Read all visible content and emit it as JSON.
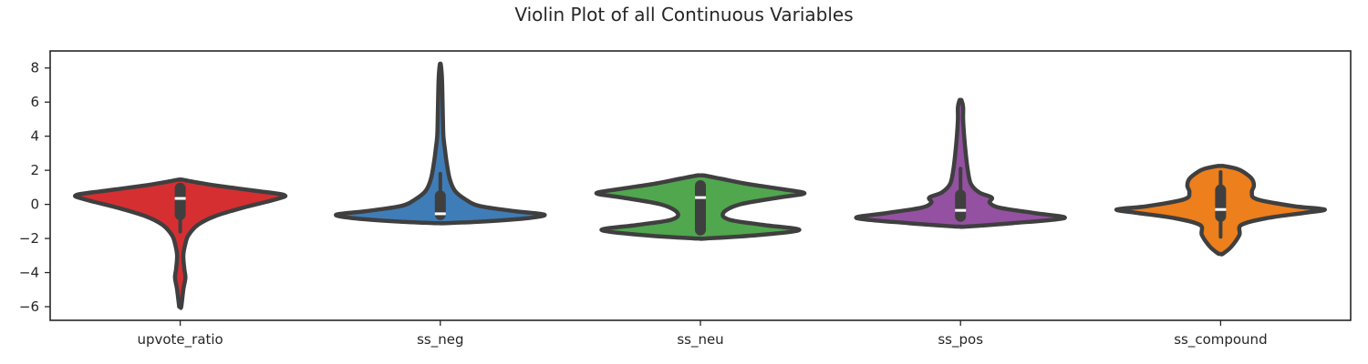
{
  "chart_data": {
    "type": "violin",
    "title": "Violin Plot of all Continuous Variables",
    "xlabel": "",
    "ylabel": "",
    "ylim": [
      -6.8,
      9.0
    ],
    "yticks": [
      -6,
      -4,
      -2,
      0,
      2,
      4,
      6,
      8
    ],
    "categories": [
      "upvote_ratio",
      "ss_neg",
      "ss_neu",
      "ss_pos",
      "ss_compound"
    ],
    "colors": [
      "#d62f32",
      "#3f7db8",
      "#50a74e",
      "#9451a1",
      "#ed7f1c"
    ],
    "series": [
      {
        "min": -6.0,
        "q1": -0.6,
        "median": 0.35,
        "q3": 0.95,
        "max": 1.45,
        "whisker_low": -1.6,
        "whisker_high": 1.1,
        "profile": [
          [
            -6.0,
            0.01
          ],
          [
            -5.0,
            0.03
          ],
          [
            -4.3,
            0.05
          ],
          [
            -3.8,
            0.04
          ],
          [
            -3.0,
            0.03
          ],
          [
            -2.3,
            0.05
          ],
          [
            -1.8,
            0.08
          ],
          [
            -1.2,
            0.17
          ],
          [
            -0.7,
            0.33
          ],
          [
            -0.2,
            0.6
          ],
          [
            0.3,
            0.92
          ],
          [
            0.55,
            1.0
          ],
          [
            0.8,
            0.72
          ],
          [
            1.1,
            0.35
          ],
          [
            1.3,
            0.15
          ],
          [
            1.45,
            0.02
          ]
        ]
      },
      {
        "min": -1.1,
        "q1": -0.6,
        "median": -0.55,
        "q3": 0.5,
        "max": 8.2,
        "whisker_low": -0.7,
        "whisker_high": 1.8,
        "profile": [
          [
            -1.1,
            0.05
          ],
          [
            -1.0,
            0.42
          ],
          [
            -0.8,
            0.85
          ],
          [
            -0.6,
            1.0
          ],
          [
            -0.4,
            0.72
          ],
          [
            -0.1,
            0.38
          ],
          [
            0.3,
            0.24
          ],
          [
            0.8,
            0.14
          ],
          [
            1.5,
            0.09
          ],
          [
            2.5,
            0.06
          ],
          [
            3.2,
            0.045
          ],
          [
            4.0,
            0.03
          ],
          [
            5.0,
            0.025
          ],
          [
            6.5,
            0.02
          ],
          [
            7.5,
            0.015
          ],
          [
            8.2,
            0.005
          ]
        ]
      },
      {
        "min": -2.0,
        "q1": -1.5,
        "median": 0.4,
        "q3": 1.1,
        "max": 1.7,
        "whisker_low": -1.7,
        "whisker_high": 1.3,
        "profile": [
          [
            -2.0,
            0.05
          ],
          [
            -1.8,
            0.55
          ],
          [
            -1.5,
            0.95
          ],
          [
            -1.2,
            0.6
          ],
          [
            -0.9,
            0.28
          ],
          [
            -0.5,
            0.22
          ],
          [
            0.0,
            0.38
          ],
          [
            0.4,
            0.75
          ],
          [
            0.65,
            1.0
          ],
          [
            0.9,
            0.78
          ],
          [
            1.2,
            0.45
          ],
          [
            1.5,
            0.2
          ],
          [
            1.7,
            0.03
          ]
        ]
      },
      {
        "min": -1.3,
        "q1": -0.7,
        "median": -0.35,
        "q3": 0.55,
        "max": 6.1,
        "whisker_low": -0.8,
        "whisker_high": 2.1,
        "profile": [
          [
            -1.3,
            0.05
          ],
          [
            -1.1,
            0.5
          ],
          [
            -0.8,
            1.0
          ],
          [
            -0.5,
            0.7
          ],
          [
            -0.2,
            0.38
          ],
          [
            0.1,
            0.28
          ],
          [
            0.4,
            0.3
          ],
          [
            0.7,
            0.18
          ],
          [
            1.2,
            0.1
          ],
          [
            2.0,
            0.07
          ],
          [
            3.0,
            0.05
          ],
          [
            4.0,
            0.035
          ],
          [
            5.0,
            0.025
          ],
          [
            5.7,
            0.025
          ],
          [
            6.1,
            0.01
          ]
        ]
      },
      {
        "min": -2.9,
        "q1": -0.7,
        "median": -0.3,
        "q3": 0.85,
        "max": 2.25,
        "whisker_low": -1.9,
        "whisker_high": 1.9,
        "profile": [
          [
            -2.9,
            0.02
          ],
          [
            -2.5,
            0.1
          ],
          [
            -1.8,
            0.18
          ],
          [
            -1.2,
            0.2
          ],
          [
            -0.8,
            0.45
          ],
          [
            -0.5,
            0.8
          ],
          [
            -0.3,
            1.0
          ],
          [
            -0.1,
            0.7
          ],
          [
            0.3,
            0.35
          ],
          [
            0.7,
            0.3
          ],
          [
            1.1,
            0.32
          ],
          [
            1.5,
            0.3
          ],
          [
            1.9,
            0.22
          ],
          [
            2.1,
            0.15
          ],
          [
            2.25,
            0.03
          ]
        ]
      }
    ]
  }
}
